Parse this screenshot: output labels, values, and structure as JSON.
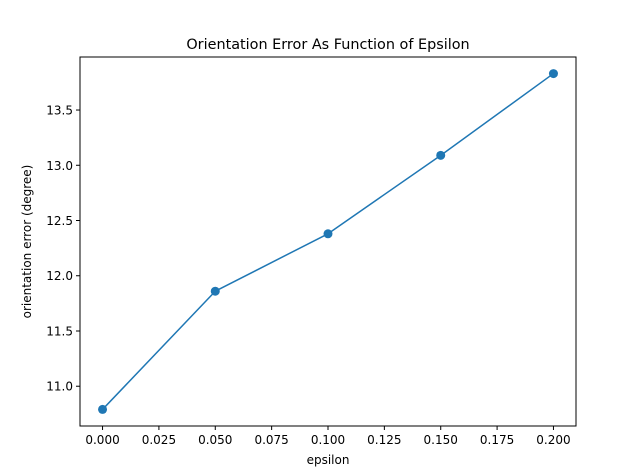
{
  "chart_data": {
    "type": "line",
    "title": "Orientation Error As Function of Epsilon",
    "xlabel": "epsilon",
    "ylabel": "orientation error (degree)",
    "xlim": [
      -0.01,
      0.21
    ],
    "ylim": [
      10.64,
      13.98
    ],
    "xticks": [
      "0.000",
      "0.025",
      "0.050",
      "0.075",
      "0.100",
      "0.125",
      "0.150",
      "0.175",
      "0.200"
    ],
    "xtick_values": [
      0.0,
      0.025,
      0.05,
      0.075,
      0.1,
      0.125,
      0.15,
      0.175,
      0.2
    ],
    "yticks": [
      "11.0",
      "11.5",
      "12.0",
      "12.5",
      "13.0",
      "13.5"
    ],
    "ytick_values": [
      11.0,
      11.5,
      12.0,
      12.5,
      13.0,
      13.5
    ],
    "grid": false,
    "series": [
      {
        "x": [
          0.0,
          0.05,
          0.1,
          0.15,
          0.2
        ],
        "values": [
          10.79,
          11.86,
          12.38,
          13.09,
          13.83
        ],
        "color": "#1f77b4",
        "marker": "circle"
      }
    ]
  }
}
